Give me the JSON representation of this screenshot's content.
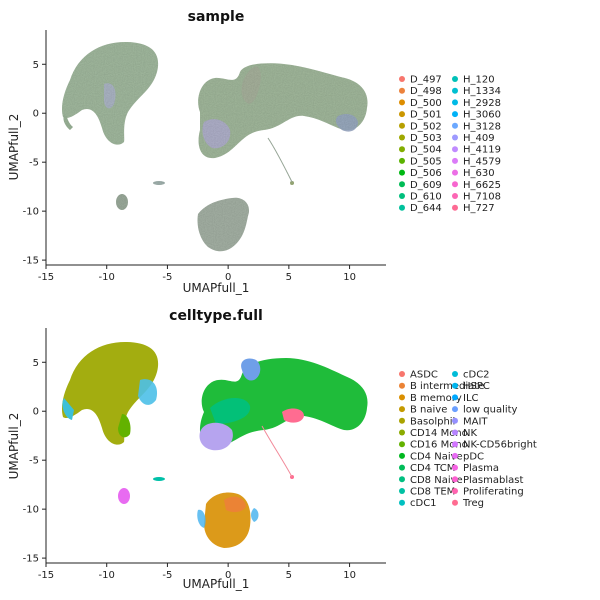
{
  "chart_data": [
    {
      "type": "scatter",
      "title": "sample",
      "xlabel": "UMAPfull_1",
      "ylabel": "UMAPfull_2",
      "xlim": [
        -15,
        13
      ],
      "ylim": [
        -15.5,
        8.5
      ],
      "xticks": [
        -15,
        -10,
        -5,
        0,
        5,
        10
      ],
      "yticks": [
        5,
        0,
        -5,
        -10,
        -15
      ],
      "grid": false,
      "legend_position": "right",
      "legend": [
        {
          "name": "D_497",
          "color": "#F8766D"
        },
        {
          "name": "D_498",
          "color": "#EC823C"
        },
        {
          "name": "D_500",
          "color": "#DD8D00"
        },
        {
          "name": "D_501",
          "color": "#CB9700"
        },
        {
          "name": "D_502",
          "color": "#B7A000"
        },
        {
          "name": "D_503",
          "color": "#9FA800"
        },
        {
          "name": "D_504",
          "color": "#82AD00"
        },
        {
          "name": "D_505",
          "color": "#5BB300"
        },
        {
          "name": "D_506",
          "color": "#00B813"
        },
        {
          "name": "D_609",
          "color": "#00BC56"
        },
        {
          "name": "D_610",
          "color": "#00BF7D"
        },
        {
          "name": "D_644",
          "color": "#00C19C"
        },
        {
          "name": "H_120",
          "color": "#00C1B8"
        },
        {
          "name": "H_1334",
          "color": "#00BFD1"
        },
        {
          "name": "H_2928",
          "color": "#00BAE6"
        },
        {
          "name": "H_3060",
          "color": "#00B2F7"
        },
        {
          "name": "H_3128",
          "color": "#6BA8FF"
        },
        {
          "name": "H_409",
          "color": "#9E9AFF"
        },
        {
          "name": "H_4119",
          "color": "#C08BFF"
        },
        {
          "name": "H_4579",
          "color": "#DB7CF8"
        },
        {
          "name": "H_630",
          "color": "#EC6FE6"
        },
        {
          "name": "H_6625",
          "color": "#F766CF"
        },
        {
          "name": "H_7108",
          "color": "#FC66B4"
        },
        {
          "name": "H_727",
          "color": "#FD6A93"
        }
      ]
    },
    {
      "type": "scatter",
      "title": "celltype.full",
      "xlabel": "UMAPfull_1",
      "ylabel": "UMAPfull_2",
      "xlim": [
        -15,
        13
      ],
      "ylim": [
        -15.5,
        8.5
      ],
      "xticks": [
        -15,
        -10,
        -5,
        0,
        5,
        10
      ],
      "yticks": [
        5,
        0,
        -5,
        -10,
        -15
      ],
      "grid": false,
      "legend_position": "right",
      "legend": [
        {
          "name": "ASDC",
          "color": "#F8766D"
        },
        {
          "name": "B intermediate",
          "color": "#EB8335"
        },
        {
          "name": "B memory",
          "color": "#DA8F00"
        },
        {
          "name": "B naive",
          "color": "#C49A00"
        },
        {
          "name": "Basolphil",
          "color": "#AAA300"
        },
        {
          "name": "CD14 Mono",
          "color": "#8BAB00"
        },
        {
          "name": "CD16 Mono",
          "color": "#63B200"
        },
        {
          "name": "CD4 Naive",
          "color": "#00B81F"
        },
        {
          "name": "CD4 TCM",
          "color": "#00BC59"
        },
        {
          "name": "CD8 Naive",
          "color": "#00BF80"
        },
        {
          "name": "CD8 TEM",
          "color": "#00C1A3"
        },
        {
          "name": "cDC1",
          "color": "#00C0C1"
        },
        {
          "name": "cDC2",
          "color": "#00BCD8"
        },
        {
          "name": "HSPC",
          "color": "#00B5EE"
        },
        {
          "name": "ILC",
          "color": "#00A9FF"
        },
        {
          "name": "low quality",
          "color": "#6A9FFF"
        },
        {
          "name": "MAIT",
          "color": "#9590FF"
        },
        {
          "name": "NK",
          "color": "#B684FF"
        },
        {
          "name": "NK-CD56bright",
          "color": "#D277FF"
        },
        {
          "name": "pDC",
          "color": "#E76BF3"
        },
        {
          "name": "Plasma",
          "color": "#F564E3"
        },
        {
          "name": "Plasmablast",
          "color": "#FD61D1"
        },
        {
          "name": "Proliferating",
          "color": "#FF64B0"
        },
        {
          "name": "Treg",
          "color": "#FF6C91"
        }
      ]
    }
  ]
}
